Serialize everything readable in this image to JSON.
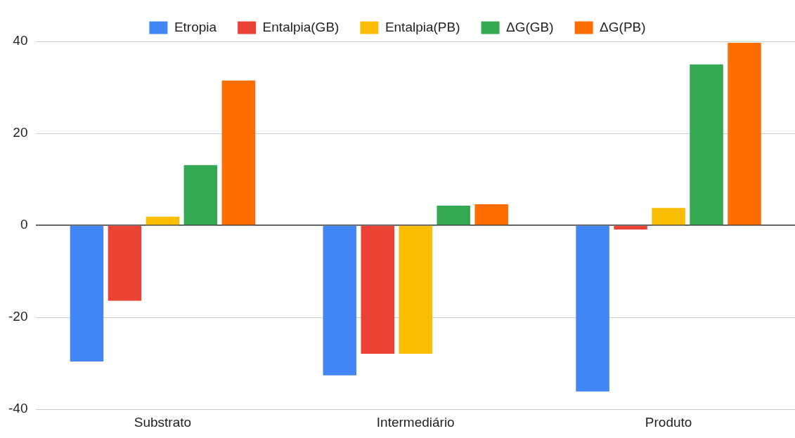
{
  "chart_data": {
    "type": "bar",
    "categories": [
      "Substrato",
      "Intermediário",
      "Produto"
    ],
    "series": [
      {
        "name": "Etropia",
        "color": "#4285f4",
        "values": [
          -29.6,
          -32.6,
          -36.1
        ]
      },
      {
        "name": "Entalpia(GB)",
        "color": "#ea4335",
        "values": [
          -16.4,
          -27.9,
          -0.9
        ]
      },
      {
        "name": "Entalpia(PB)",
        "color": "#fbbc04",
        "values": [
          1.9,
          -27.9,
          3.8
        ]
      },
      {
        "name": "ΔG(GB)",
        "color": "#34a853",
        "values": [
          13.1,
          4.3,
          35.0
        ]
      },
      {
        "name": "ΔG(PB)",
        "color": "#ff6d01",
        "values": [
          31.5,
          4.6,
          39.7
        ]
      }
    ],
    "ylim": [
      -40,
      40
    ],
    "yticks": [
      -40,
      -20,
      0,
      20,
      40
    ],
    "grid": "y",
    "legend": "top"
  }
}
